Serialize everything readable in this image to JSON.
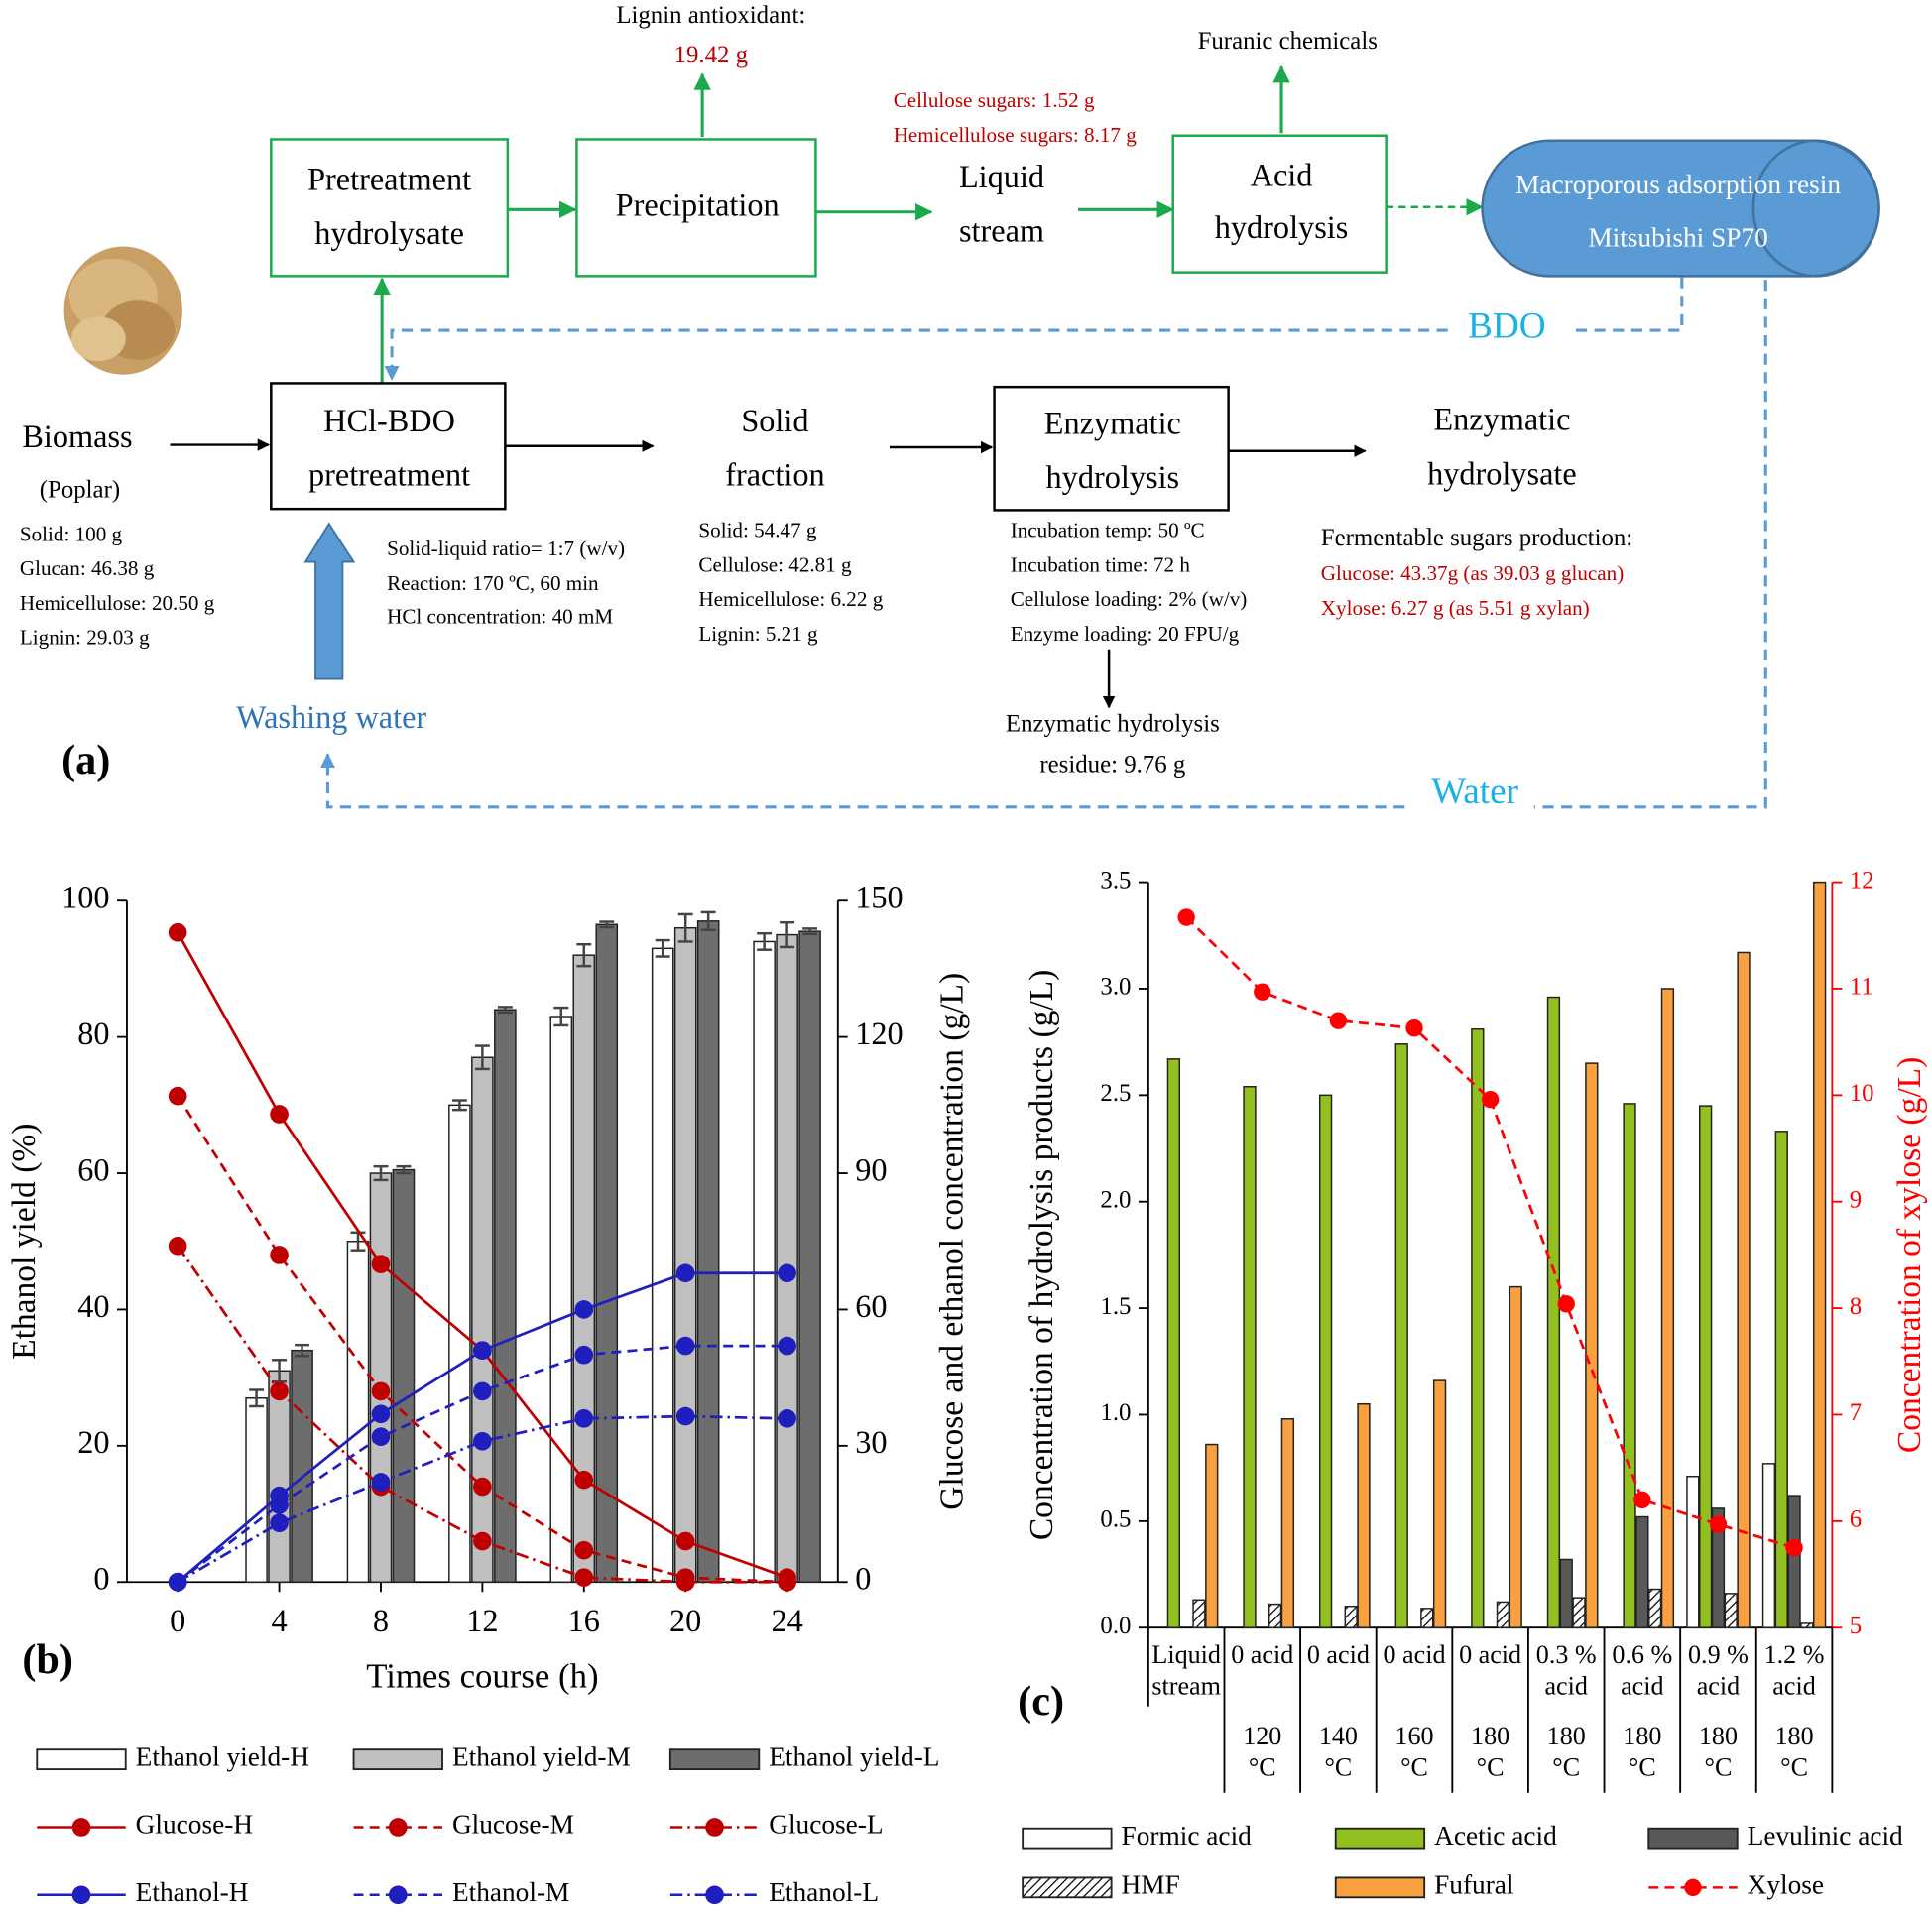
{
  "diagram": {
    "panel_label": "(a)",
    "lignin_title": "Lignin antioxidant:",
    "lignin_value": "19.42 g",
    "furanic": "Furanic chemicals",
    "liquid_sugars": [
      "Cellulose sugars: 1.52 g",
      "Hemicellulose sugars: 8.17 g"
    ],
    "pretreatment_hydrolysate": [
      "Pretreatment",
      "hydrolysate"
    ],
    "precipitation": "Precipitation",
    "liquid_stream": [
      "Liquid",
      "stream"
    ],
    "acid_hydrolysis": [
      "Acid",
      "hydrolysis"
    ],
    "resin": [
      "Macroporous adsorption resin",
      "Mitsubishi SP70"
    ],
    "bdo": "BDO",
    "water": "Water",
    "washing_water": "Washing water",
    "biomass": "Biomass",
    "poplar": "(Poplar)",
    "biomass_composition": [
      "Solid: 100 g",
      "Glucan: 46.38 g",
      "Hemicellulose: 20.50 g",
      "Lignin: 29.03 g"
    ],
    "pretreatment": [
      "HCl-BDO",
      "pretreatment"
    ],
    "pretreatment_conditions": [
      "Solid-liquid ratio= 1:7 (w/v)",
      "Reaction: 170 ºC, 60 min",
      "HCl concentration: 40 mM"
    ],
    "solid_fraction": [
      "Solid",
      "fraction"
    ],
    "solid_composition": [
      "Solid: 54.47 g",
      "Cellulose: 42.81 g",
      "Hemicellulose: 6.22 g",
      "Lignin: 5.21 g"
    ],
    "enzymatic_hydrolysis": [
      "Enzymatic",
      "hydrolysis"
    ],
    "enzymatic_conditions": [
      "Incubation temp: 50 ºC",
      "Incubation time: 72 h",
      "Cellulose loading: 2% (w/v)",
      "Enzyme loading: 20 FPU/g"
    ],
    "residue": [
      "Enzymatic hydrolysis",
      "residue: 9.76 g"
    ],
    "hydrolysate": [
      "Enzymatic",
      "hydrolysate"
    ],
    "sugars_title": "Fermentable sugars production:",
    "sugars": [
      "Glucose: 43.37g (as 39.03 g glucan)",
      "Xylose: 6.27 g (as 5.51 g xylan)"
    ]
  },
  "chart_data": [
    {
      "type": "bar",
      "panel_label": "(b)",
      "x_label": "Times course (h)",
      "y_label": "Ethanol yield (%)",
      "y2_label": "Glucose and ethanol concentration (g/L)",
      "x": [
        0,
        4,
        8,
        12,
        16,
        20,
        24
      ],
      "xlim": [
        -2,
        26
      ],
      "xticks": [
        0,
        4,
        8,
        12,
        16,
        20,
        24
      ],
      "ylim": [
        0,
        100
      ],
      "yticks": [
        0,
        20,
        40,
        60,
        80,
        100
      ],
      "y2lim": [
        0,
        150
      ],
      "y2ticks": [
        0,
        30,
        60,
        90,
        120,
        150
      ],
      "series": [
        {
          "name": "Ethanol yield-H",
          "type": "bar",
          "color": "#ffffff",
          "values": [
            null,
            27,
            50,
            70,
            83,
            93,
            94
          ],
          "errors": [
            null,
            1.2,
            1.3,
            0.7,
            1.3,
            1.2,
            1.2
          ]
        },
        {
          "name": "Ethanol yield-M",
          "type": "bar",
          "color": "#c0c0c0",
          "values": [
            null,
            31,
            60,
            77,
            92,
            96,
            95
          ],
          "errors": [
            null,
            1.6,
            1,
            1.7,
            1.6,
            2,
            1.8
          ]
        },
        {
          "name": "Ethanol yield-L",
          "type": "bar",
          "color": "#6d6d6d",
          "values": [
            null,
            34,
            60.5,
            84,
            96.5,
            97,
            95.5
          ],
          "errors": [
            null,
            0.8,
            0.5,
            0.4,
            0.4,
            1.3,
            0.4
          ]
        },
        {
          "name": "Glucose-H",
          "type": "line",
          "axis": "y2",
          "color": "#c00000",
          "dash": "solid",
          "values": [
            143,
            103,
            70,
            51,
            22.5,
            9,
            1
          ]
        },
        {
          "name": "Glucose-M",
          "type": "line",
          "axis": "y2",
          "color": "#c00000",
          "dash": "dashed",
          "values": [
            107,
            72,
            42,
            21,
            7,
            1,
            0
          ]
        },
        {
          "name": "Glucose-L",
          "type": "line",
          "axis": "y2",
          "color": "#c00000",
          "dash": "dashdot",
          "values": [
            74,
            42,
            21,
            9,
            1,
            0,
            0
          ]
        },
        {
          "name": "Ethanol-H",
          "type": "line",
          "axis": "y2",
          "color": "#1f1fbf",
          "dash": "solid",
          "values": [
            0,
            19,
            37,
            51,
            60,
            68,
            68
          ]
        },
        {
          "name": "Ethanol-M",
          "type": "line",
          "axis": "y2",
          "color": "#1f1fbf",
          "dash": "dashed",
          "values": [
            0,
            17,
            32,
            42,
            50,
            52,
            52
          ]
        },
        {
          "name": "Ethanol-L",
          "type": "line",
          "axis": "y2",
          "color": "#1f1fbf",
          "dash": "dashdot",
          "values": [
            0,
            13,
            22,
            31,
            36,
            36.5,
            36
          ]
        }
      ]
    },
    {
      "type": "bar",
      "panel_label": "(c)",
      "y_label": "Concentration of hydrolysis products (g/L)",
      "y2_label": "Concentration of xylose (g/L)",
      "y2_color": "#ff0000",
      "categories": [
        "Liquid stream",
        "0 acid",
        "0 acid",
        "0 acid",
        "0 acid",
        "0.3 % acid",
        "0.6 % acid",
        "0.9 % acid",
        "1.2 % acid"
      ],
      "category_temps": [
        null,
        "120 °C",
        "140 °C",
        "160 °C",
        "180 °C",
        "180 °C",
        "180 °C",
        "180 °C",
        "180 °C"
      ],
      "ylim": [
        0,
        3.5
      ],
      "yticks": [
        {
          "value": 0,
          "label": "0.0"
        },
        0.5,
        {
          "value": 1,
          "label": "1.0"
        },
        1.5,
        {
          "value": 2,
          "label": "2.0"
        },
        2.5,
        {
          "value": 3,
          "label": "3.0"
        },
        3.5
      ],
      "y2lim": [
        5,
        12
      ],
      "y2ticks": [
        5,
        6,
        7,
        8,
        9,
        10,
        11,
        12
      ],
      "series": [
        {
          "name": "Formic acid",
          "type": "bar",
          "color": "#ffffff",
          "values": [
            0,
            0,
            0,
            0,
            0,
            0,
            0,
            0.71,
            0.77
          ]
        },
        {
          "name": "Acetic acid",
          "type": "bar",
          "color": "#92c01e",
          "values": [
            2.67,
            2.54,
            2.5,
            2.74,
            2.81,
            2.96,
            2.46,
            2.45,
            2.33
          ]
        },
        {
          "name": "Levulinic acid",
          "type": "bar",
          "color": "#595959",
          "values": [
            0,
            0,
            0,
            0,
            0,
            0.32,
            0.52,
            0.56,
            0.62
          ]
        },
        {
          "name": "HMF",
          "type": "bar",
          "color": "#ffffff",
          "pattern": "hatch",
          "values": [
            0.13,
            0.11,
            0.1,
            0.09,
            0.12,
            0.14,
            0.18,
            0.16,
            0.02
          ]
        },
        {
          "name": "Fufural",
          "type": "bar",
          "color": "#f9a040",
          "values": [
            0.86,
            0.98,
            1.05,
            1.16,
            1.6,
            2.65,
            3.0,
            3.17,
            3.5
          ]
        },
        {
          "name": "Xylose",
          "type": "line",
          "axis": "y2",
          "color": "#ff0000",
          "dash": "dashed",
          "values": [
            11.67,
            10.97,
            10.7,
            10.63,
            9.96,
            8.04,
            6.2,
            5.97,
            5.75
          ]
        }
      ]
    }
  ]
}
